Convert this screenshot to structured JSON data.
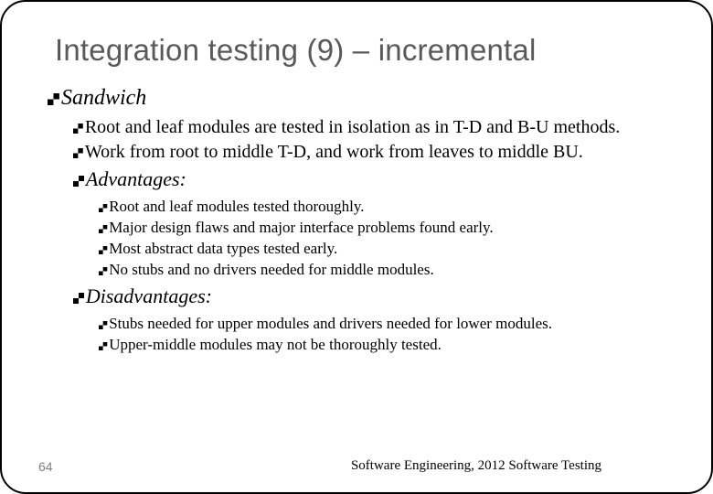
{
  "title": "Integration testing (9) – incremental",
  "lvl1": "Sandwich",
  "point1": "Root and leaf modules are tested in isolation as in T-D and B-U methods.",
  "point2": "Work from root to middle T-D, and work from leaves to middle BU.",
  "adv_heading": "Advantages:",
  "adv": [
    "Root and leaf modules tested thoroughly.",
    "Major design flaws and major interface problems found early.",
    "Most abstract data types tested early.",
    "No stubs and no drivers needed for middle modules."
  ],
  "dis_heading": "Disadvantages:",
  "dis": [
    "Stubs needed for upper modules and drivers needed for lower modules.",
    "Upper-middle modules may not be thoroughly tested."
  ],
  "page_number": "64",
  "footer": "Software Engineering,  2012 Software  Testing",
  "colors": {
    "title_color": "#595959",
    "text_color": "#000000",
    "page_num_color": "#7f7f7f",
    "border_color": "#000000",
    "background": "#ffffff"
  },
  "typography": {
    "title_font": "Arial",
    "body_font": "Times New Roman",
    "title_size_pt": 25,
    "lvl1_size_pt": 18,
    "lvl2_size_pt": 15,
    "lvl3_size_pt": 13
  }
}
